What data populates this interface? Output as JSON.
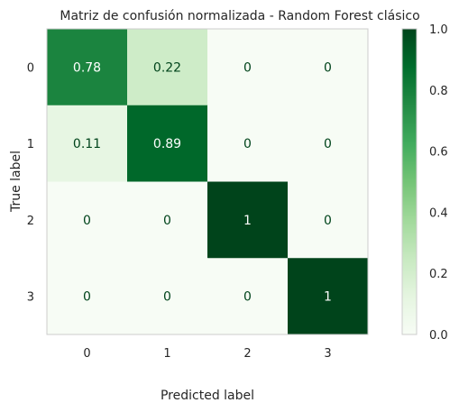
{
  "chart_data": {
    "type": "heatmap",
    "title": "Matriz de confusión normalizada - Random Forest clásico",
    "xlabel": "Predicted label",
    "ylabel": "True label",
    "x_categories": [
      "0",
      "1",
      "2",
      "3"
    ],
    "y_categories": [
      "0",
      "1",
      "2",
      "3"
    ],
    "values": [
      [
        0.78,
        0.22,
        0,
        0
      ],
      [
        0.11,
        0.89,
        0,
        0
      ],
      [
        0,
        0,
        1,
        0
      ],
      [
        0,
        0,
        0,
        1
      ]
    ],
    "cell_labels": [
      [
        "0.78",
        "0.22",
        "0",
        "0"
      ],
      [
        "0.11",
        "0.89",
        "0",
        "0"
      ],
      [
        "0",
        "0",
        "1",
        "0"
      ],
      [
        "0",
        "0",
        "0",
        "1"
      ]
    ],
    "colormap": "Greens",
    "colormap_stops": [
      "#f7fcf5",
      "#e5f5e0",
      "#c7e9c0",
      "#a1d99b",
      "#74c476",
      "#41ab5d",
      "#238b45",
      "#006d2c",
      "#00441b"
    ],
    "colorbar": {
      "range": [
        0.0,
        1.0
      ],
      "ticks": [
        0.0,
        0.2,
        0.4,
        0.6,
        0.8,
        1.0
      ],
      "tick_labels": [
        "0.0",
        "0.2",
        "0.4",
        "0.6",
        "0.8",
        "1.0"
      ]
    },
    "grid": false
  }
}
